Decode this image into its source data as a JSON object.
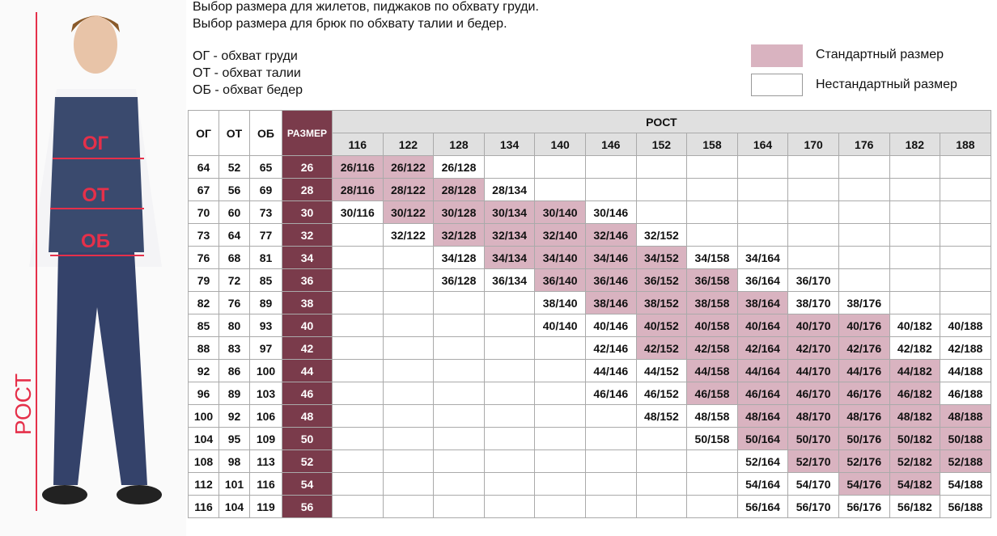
{
  "header": {
    "lines": [
      "Выбор размера для жилетов, пиджаков по обхвату груди.",
      "Выбор размера для брюк по обхвату талии и бедер."
    ],
    "abbreviations": [
      "ОГ - обхват груди",
      "ОТ - обхват талии",
      "ОБ - обхват бедер"
    ]
  },
  "legend": [
    {
      "label": "Стандартный размер",
      "color": "#d9b3c0"
    },
    {
      "label": "Нестандартный размер",
      "color": "#ffffff"
    }
  ],
  "figure_labels": {
    "chest": "ОГ",
    "waist": "ОТ",
    "hips": "ОБ",
    "height": "РОСТ"
  },
  "table": {
    "columns": [
      "ОГ",
      "ОТ",
      "ОБ",
      "РАЗМЕР"
    ],
    "height_label": "РОСТ",
    "size_color": "#7a3b4b",
    "heights": [
      116,
      122,
      128,
      134,
      140,
      146,
      152,
      158,
      164,
      170,
      176,
      182,
      188
    ],
    "rows": [
      {
        "og": 64,
        "ot": 52,
        "ob": 65,
        "size": 26,
        "cells": [
          "26/116",
          "26/122",
          "26/128",
          null,
          null,
          null,
          null,
          null,
          null,
          null,
          null,
          null,
          null
        ],
        "standard": [
          0,
          1
        ]
      },
      {
        "og": 67,
        "ot": 56,
        "ob": 69,
        "size": 28,
        "cells": [
          "28/116",
          "28/122",
          "28/128",
          "28/134",
          null,
          null,
          null,
          null,
          null,
          null,
          null,
          null,
          null
        ],
        "standard": [
          0,
          1,
          2
        ]
      },
      {
        "og": 70,
        "ot": 60,
        "ob": 73,
        "size": 30,
        "cells": [
          "30/116",
          "30/122",
          "30/128",
          "30/134",
          "30/140",
          "30/146",
          null,
          null,
          null,
          null,
          null,
          null,
          null
        ],
        "standard": [
          1,
          2,
          3,
          4
        ]
      },
      {
        "og": 73,
        "ot": 64,
        "ob": 77,
        "size": 32,
        "cells": [
          null,
          "32/122",
          "32/128",
          "32/134",
          "32/140",
          "32/146",
          "32/152",
          null,
          null,
          null,
          null,
          null,
          null
        ],
        "standard": [
          2,
          3,
          4,
          5
        ]
      },
      {
        "og": 76,
        "ot": 68,
        "ob": 81,
        "size": 34,
        "cells": [
          null,
          null,
          "34/128",
          "34/134",
          "34/140",
          "34/146",
          "34/152",
          "34/158",
          "34/164",
          null,
          null,
          null,
          null
        ],
        "standard": [
          3,
          4,
          5,
          6
        ]
      },
      {
        "og": 79,
        "ot": 72,
        "ob": 85,
        "size": 36,
        "cells": [
          null,
          null,
          "36/128",
          "36/134",
          "36/140",
          "36/146",
          "36/152",
          "36/158",
          "36/164",
          "36/170",
          null,
          null,
          null
        ],
        "standard": [
          4,
          5,
          6,
          7
        ]
      },
      {
        "og": 82,
        "ot": 76,
        "ob": 89,
        "size": 38,
        "cells": [
          null,
          null,
          null,
          null,
          "38/140",
          "38/146",
          "38/152",
          "38/158",
          "38/164",
          "38/170",
          "38/176",
          null,
          null
        ],
        "standard": [
          5,
          6,
          7,
          8
        ]
      },
      {
        "og": 85,
        "ot": 80,
        "ob": 93,
        "size": 40,
        "cells": [
          null,
          null,
          null,
          null,
          "40/140",
          "40/146",
          "40/152",
          "40/158",
          "40/164",
          "40/170",
          "40/176",
          "40/182",
          "40/188"
        ],
        "standard": [
          6,
          7,
          8,
          9,
          10
        ]
      },
      {
        "og": 88,
        "ot": 83,
        "ob": 97,
        "size": 42,
        "cells": [
          null,
          null,
          null,
          null,
          null,
          "42/146",
          "42/152",
          "42/158",
          "42/164",
          "42/170",
          "42/176",
          "42/182",
          "42/188"
        ],
        "standard": [
          6,
          7,
          8,
          9,
          10
        ]
      },
      {
        "og": 92,
        "ot": 86,
        "ob": 100,
        "size": 44,
        "cells": [
          null,
          null,
          null,
          null,
          null,
          "44/146",
          "44/152",
          "44/158",
          "44/164",
          "44/170",
          "44/176",
          "44/182",
          "44/188"
        ],
        "standard": [
          7,
          8,
          9,
          10,
          11
        ]
      },
      {
        "og": 96,
        "ot": 89,
        "ob": 103,
        "size": 46,
        "cells": [
          null,
          null,
          null,
          null,
          null,
          "46/146",
          "46/152",
          "46/158",
          "46/164",
          "46/170",
          "46/176",
          "46/182",
          "46/188"
        ],
        "standard": [
          7,
          8,
          9,
          10,
          11
        ]
      },
      {
        "og": 100,
        "ot": 92,
        "ob": 106,
        "size": 48,
        "cells": [
          null,
          null,
          null,
          null,
          null,
          null,
          "48/152",
          "48/158",
          "48/164",
          "48/170",
          "48/176",
          "48/182",
          "48/188"
        ],
        "standard": [
          8,
          9,
          10,
          11,
          12
        ]
      },
      {
        "og": 104,
        "ot": 95,
        "ob": 109,
        "size": 50,
        "cells": [
          null,
          null,
          null,
          null,
          null,
          null,
          null,
          "50/158",
          "50/164",
          "50/170",
          "50/176",
          "50/182",
          "50/188"
        ],
        "standard": [
          8,
          9,
          10,
          11,
          12
        ]
      },
      {
        "og": 108,
        "ot": 98,
        "ob": 113,
        "size": 52,
        "cells": [
          null,
          null,
          null,
          null,
          null,
          null,
          null,
          null,
          "52/164",
          "52/170",
          "52/176",
          "52/182",
          "52/188"
        ],
        "standard": [
          9,
          10,
          11,
          12
        ]
      },
      {
        "og": 112,
        "ot": 101,
        "ob": 116,
        "size": 54,
        "cells": [
          null,
          null,
          null,
          null,
          null,
          null,
          null,
          null,
          "54/164",
          "54/170",
          "54/176",
          "54/182",
          "54/188"
        ],
        "standard": [
          10,
          11
        ]
      },
      {
        "og": 116,
        "ot": 104,
        "ob": 119,
        "size": 56,
        "cells": [
          null,
          null,
          null,
          null,
          null,
          null,
          null,
          null,
          "56/164",
          "56/170",
          "56/176",
          "56/182",
          "56/188"
        ],
        "standard": []
      }
    ]
  }
}
